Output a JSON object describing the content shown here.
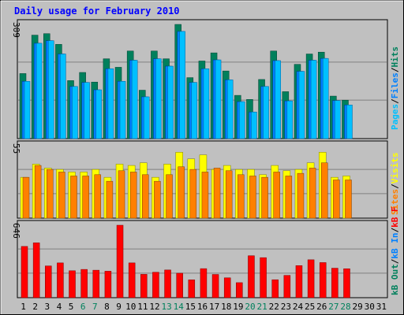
{
  "title": "Daily usage for February 2010",
  "colors": {
    "frame_bg": "#C0C0C0",
    "plot_bg": "#C0C0C0",
    "grid": "#808080",
    "title": "#0000FF",
    "hits": "#00805C",
    "files": "#0080FF",
    "files_light": "#00C0FF",
    "pages": "#00C0FF",
    "visits": "#FFFF00",
    "sites": "#FF8000",
    "kbin": "#FF0000",
    "kbout": "#CC0000",
    "day_normal": "#000000",
    "day_weekend": "#00805C"
  },
  "chart_data": [
    {
      "type": "bar",
      "name": "hits-files-pages",
      "x": [
        1,
        2,
        3,
        4,
        5,
        6,
        7,
        8,
        9,
        10,
        11,
        12,
        13,
        14,
        15,
        16,
        17,
        18,
        19,
        20,
        21,
        22,
        23,
        24,
        25,
        26,
        27,
        28
      ],
      "ymax": 309,
      "ymax_label": "309",
      "side_label_parts": [
        {
          "text": "Hits",
          "color": "hits"
        },
        {
          "text": "Files",
          "color": "files"
        },
        {
          "text": "Pages",
          "color": "pages"
        }
      ],
      "series": [
        {
          "name": "Hits",
          "values": [
            176,
            280,
            284,
            255,
            157,
            179,
            153,
            216,
            193,
            237,
            131,
            237,
            216,
            309,
            165,
            210,
            232,
            183,
            117,
            106,
            160,
            237,
            127,
            201,
            229,
            234,
            115,
            104
          ]
        },
        {
          "name": "Files",
          "values": [
            155,
            258,
            265,
            229,
            141,
            152,
            132,
            189,
            155,
            212,
            113,
            216,
            196,
            290,
            152,
            189,
            213,
            159,
            100,
            72,
            141,
            211,
            102,
            182,
            212,
            217,
            103,
            91
          ]
        },
        {
          "name": "Pages",
          "values": [
            155,
            258,
            265,
            229,
            141,
            152,
            132,
            189,
            155,
            212,
            113,
            216,
            196,
            290,
            152,
            189,
            213,
            159,
            100,
            72,
            141,
            211,
            102,
            182,
            212,
            217,
            103,
            91
          ]
        }
      ]
    },
    {
      "type": "bar",
      "name": "visits-sites",
      "x": [
        1,
        2,
        3,
        4,
        5,
        6,
        7,
        8,
        9,
        10,
        11,
        12,
        13,
        14,
        15,
        16,
        17,
        18,
        19,
        20,
        21,
        22,
        23,
        24,
        25,
        26,
        27,
        28
      ],
      "ymax": 55,
      "ymax_label": "55",
      "side_label_parts": [
        {
          "text": "Visits",
          "color": "visits"
        },
        {
          "text": "Sites",
          "color": "sites"
        }
      ],
      "series": [
        {
          "name": "Visits",
          "values": [
            31,
            41,
            38,
            37,
            35,
            35,
            37,
            31,
            41,
            40,
            42,
            31,
            41,
            50,
            45,
            48,
            37,
            40,
            37,
            37,
            33,
            40,
            36,
            37,
            42,
            50,
            31,
            32
          ]
        },
        {
          "name": "Sites",
          "values": [
            31,
            40,
            37,
            35,
            32,
            32,
            33,
            28,
            36,
            35,
            33,
            28,
            33,
            39,
            37,
            35,
            38,
            36,
            33,
            32,
            31,
            35,
            32,
            34,
            38,
            42,
            29,
            29
          ]
        }
      ]
    },
    {
      "type": "bar",
      "name": "kbf-kbin-kbout",
      "x": [
        1,
        2,
        3,
        4,
        5,
        6,
        7,
        8,
        9,
        10,
        11,
        12,
        13,
        14,
        15,
        16,
        17,
        18,
        19,
        20,
        21,
        22,
        23,
        24,
        25,
        26,
        27,
        28
      ],
      "ymax": 646,
      "ymax_label": "646",
      "side_label_parts": [
        {
          "text": "kB F",
          "color": "kbin"
        },
        {
          "text": "kB In",
          "color": "files"
        },
        {
          "text": "kB Out",
          "color": "hits"
        }
      ],
      "series": [
        {
          "name": "kB F",
          "values": [
            457,
            489,
            283,
            310,
            240,
            252,
            245,
            236,
            646,
            310,
            208,
            227,
            247,
            218,
            159,
            259,
            207,
            177,
            134,
            374,
            357,
            160,
            199,
            286,
            338,
            313,
            263,
            258
          ]
        }
      ]
    }
  ],
  "days": [
    "1",
    "2",
    "3",
    "4",
    "5",
    "6",
    "7",
    "8",
    "9",
    "10",
    "11",
    "12",
    "13",
    "14",
    "15",
    "16",
    "17",
    "18",
    "19",
    "20",
    "21",
    "22",
    "23",
    "24",
    "25",
    "26",
    "27",
    "28",
    "29",
    "30",
    "31"
  ],
  "weekend_days": [
    6,
    7,
    13,
    14,
    20,
    21,
    27,
    28
  ]
}
